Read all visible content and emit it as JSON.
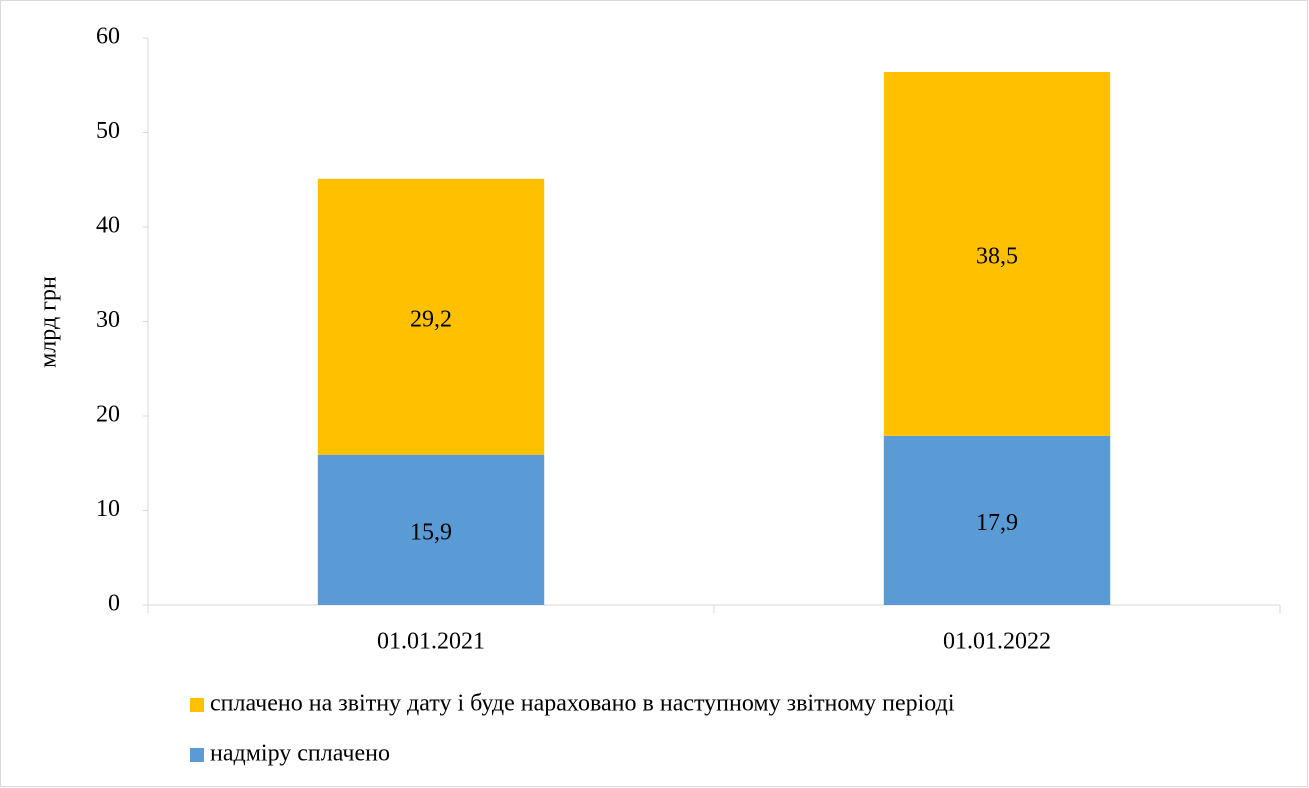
{
  "chart_data": {
    "type": "stacked_bar",
    "y_label": "млрд грн",
    "categories": [
      "01.01.2021",
      "01.01.2022"
    ],
    "series": [
      {
        "name": "надміру сплачено",
        "color": "#5b9bd5",
        "values": [
          15.9,
          17.9
        ],
        "value_labels": [
          "15,9",
          "17,9"
        ]
      },
      {
        "name": "сплачено на звітну дату і буде нараховано в наступному звітному періоді",
        "color": "#ffc000",
        "values": [
          29.2,
          38.5
        ],
        "value_labels": [
          "29,2",
          "38,5"
        ]
      }
    ],
    "ylim": [
      0,
      60
    ],
    "yticks": [
      0,
      10,
      20,
      30,
      40,
      50,
      60
    ],
    "grid": false,
    "legend": "bottom"
  }
}
